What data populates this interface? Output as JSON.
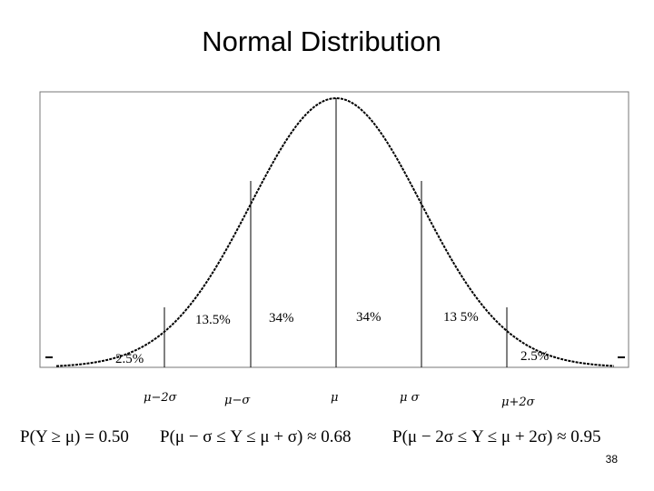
{
  "slide": {
    "title": "Normal Distribution",
    "page_number": "38"
  },
  "regions": [
    {
      "label": "2.5%"
    },
    {
      "label": "13.5%"
    },
    {
      "label": "34%"
    },
    {
      "label": "34%"
    },
    {
      "label": "13 5%"
    },
    {
      "label": "2.5%"
    }
  ],
  "axis_markers": [
    {
      "label": "μ−2σ"
    },
    {
      "label": "μ−σ"
    },
    {
      "label": "μ"
    },
    {
      "label": "μ  σ"
    },
    {
      "label": "μ+2σ"
    }
  ],
  "formulas": [
    "P(Y ≥ μ) = 0.50",
    "P(μ − σ ≤ Y ≤ μ + σ) ≈ 0.68",
    "P(μ − 2σ ≤ Y ≤ μ + 2σ) ≈ 0.95"
  ]
}
